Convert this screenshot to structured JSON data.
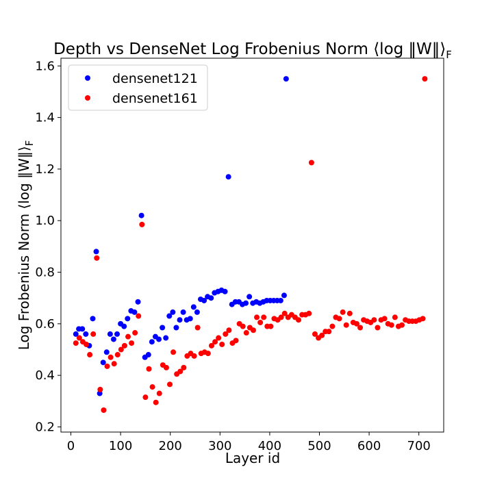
{
  "chart_data": {
    "type": "scatter",
    "title": "Depth vs DenseNet Log Frobenius Norm ⟨log ‖W‖⟩",
    "title_subscript": "F",
    "xlabel": "Layer id",
    "ylabel": "Log Frobenius Norm ⟨log ‖W‖⟩",
    "ylabel_subscript": "F",
    "xlim": [
      -20,
      750
    ],
    "ylim": [
      0.18,
      1.63
    ],
    "x_ticks": [
      0,
      100,
      200,
      300,
      400,
      500,
      600,
      700
    ],
    "y_ticks": [
      0.2,
      0.4,
      0.6,
      0.8,
      1.0,
      1.2,
      1.4,
      1.6
    ],
    "x_tick_labels": [
      "0",
      "100",
      "200",
      "300",
      "400",
      "500",
      "600",
      "700"
    ],
    "y_tick_labels": [
      "0.2",
      "0.4",
      "0.6",
      "0.8",
      "1.0",
      "1.2",
      "1.4",
      "1.6"
    ],
    "grid": false,
    "legend_position": "upper-left",
    "series": [
      {
        "name": "densenet121",
        "color": "#0000ff",
        "points": [
          [
            10,
            0.56
          ],
          [
            16,
            0.58
          ],
          [
            23,
            0.58
          ],
          [
            30,
            0.56
          ],
          [
            37,
            0.515
          ],
          [
            44,
            0.62
          ],
          [
            51,
            0.88
          ],
          [
            58,
            0.33
          ],
          [
            65,
            0.45
          ],
          [
            72,
            0.49
          ],
          [
            79,
            0.56
          ],
          [
            86,
            0.54
          ],
          [
            93,
            0.56
          ],
          [
            100,
            0.6
          ],
          [
            107,
            0.59
          ],
          [
            114,
            0.62
          ],
          [
            121,
            0.65
          ],
          [
            128,
            0.645
          ],
          [
            135,
            0.685
          ],
          [
            142,
            1.02
          ],
          [
            149,
            0.47
          ],
          [
            156,
            0.48
          ],
          [
            163,
            0.53
          ],
          [
            170,
            0.55
          ],
          [
            177,
            0.54
          ],
          [
            184,
            0.585
          ],
          [
            191,
            0.545
          ],
          [
            198,
            0.63
          ],
          [
            205,
            0.645
          ],
          [
            212,
            0.585
          ],
          [
            219,
            0.615
          ],
          [
            226,
            0.645
          ],
          [
            233,
            0.615
          ],
          [
            240,
            0.62
          ],
          [
            247,
            0.665
          ],
          [
            254,
            0.645
          ],
          [
            261,
            0.695
          ],
          [
            268,
            0.69
          ],
          [
            275,
            0.705
          ],
          [
            282,
            0.7
          ],
          [
            289,
            0.72
          ],
          [
            296,
            0.725
          ],
          [
            303,
            0.73
          ],
          [
            310,
            0.725
          ],
          [
            317,
            1.17
          ],
          [
            324,
            0.675
          ],
          [
            331,
            0.685
          ],
          [
            338,
            0.685
          ],
          [
            345,
            0.675
          ],
          [
            352,
            0.68
          ],
          [
            359,
            0.705
          ],
          [
            366,
            0.68
          ],
          [
            373,
            0.685
          ],
          [
            380,
            0.68
          ],
          [
            387,
            0.685
          ],
          [
            394,
            0.69
          ],
          [
            401,
            0.69
          ],
          [
            408,
            0.69
          ],
          [
            415,
            0.69
          ],
          [
            422,
            0.69
          ],
          [
            429,
            0.71
          ],
          [
            433,
            1.55
          ]
        ]
      },
      {
        "name": "densenet161",
        "color": "#ff0000",
        "points": [
          [
            10,
            0.525
          ],
          [
            17,
            0.545
          ],
          [
            24,
            0.53
          ],
          [
            31,
            0.52
          ],
          [
            38,
            0.48
          ],
          [
            45,
            0.56
          ],
          [
            52,
            0.855
          ],
          [
            59,
            0.345
          ],
          [
            66,
            0.265
          ],
          [
            73,
            0.435
          ],
          [
            80,
            0.47
          ],
          [
            87,
            0.445
          ],
          [
            94,
            0.48
          ],
          [
            101,
            0.5
          ],
          [
            108,
            0.515
          ],
          [
            115,
            0.55
          ],
          [
            122,
            0.525
          ],
          [
            129,
            0.565
          ],
          [
            136,
            0.63
          ],
          [
            143,
            0.985
          ],
          [
            150,
            0.315
          ],
          [
            157,
            0.425
          ],
          [
            164,
            0.355
          ],
          [
            171,
            0.295
          ],
          [
            178,
            0.33
          ],
          [
            185,
            0.44
          ],
          [
            192,
            0.43
          ],
          [
            199,
            0.365
          ],
          [
            206,
            0.49
          ],
          [
            213,
            0.405
          ],
          [
            220,
            0.415
          ],
          [
            227,
            0.43
          ],
          [
            234,
            0.475
          ],
          [
            241,
            0.485
          ],
          [
            248,
            0.475
          ],
          [
            255,
            0.585
          ],
          [
            262,
            0.485
          ],
          [
            269,
            0.49
          ],
          [
            276,
            0.485
          ],
          [
            283,
            0.515
          ],
          [
            290,
            0.53
          ],
          [
            297,
            0.545
          ],
          [
            304,
            0.52
          ],
          [
            311,
            0.56
          ],
          [
            318,
            0.575
          ],
          [
            325,
            0.525
          ],
          [
            332,
            0.535
          ],
          [
            339,
            0.6
          ],
          [
            346,
            0.59
          ],
          [
            353,
            0.565
          ],
          [
            360,
            0.585
          ],
          [
            367,
            0.575
          ],
          [
            374,
            0.625
          ],
          [
            381,
            0.605
          ],
          [
            388,
            0.625
          ],
          [
            395,
            0.59
          ],
          [
            402,
            0.59
          ],
          [
            409,
            0.62
          ],
          [
            416,
            0.615
          ],
          [
            423,
            0.625
          ],
          [
            430,
            0.64
          ],
          [
            437,
            0.625
          ],
          [
            444,
            0.635
          ],
          [
            451,
            0.625
          ],
          [
            458,
            0.615
          ],
          [
            465,
            0.635
          ],
          [
            472,
            0.635
          ],
          [
            479,
            0.64
          ],
          [
            484,
            1.225
          ],
          [
            491,
            0.56
          ],
          [
            498,
            0.545
          ],
          [
            505,
            0.555
          ],
          [
            512,
            0.57
          ],
          [
            519,
            0.57
          ],
          [
            526,
            0.59
          ],
          [
            533,
            0.625
          ],
          [
            540,
            0.62
          ],
          [
            547,
            0.645
          ],
          [
            554,
            0.595
          ],
          [
            561,
            0.64
          ],
          [
            568,
            0.605
          ],
          [
            575,
            0.6
          ],
          [
            582,
            0.585
          ],
          [
            589,
            0.615
          ],
          [
            596,
            0.61
          ],
          [
            603,
            0.605
          ],
          [
            610,
            0.615
          ],
          [
            617,
            0.585
          ],
          [
            624,
            0.615
          ],
          [
            631,
            0.62
          ],
          [
            638,
            0.6
          ],
          [
            645,
            0.595
          ],
          [
            652,
            0.625
          ],
          [
            659,
            0.59
          ],
          [
            666,
            0.595
          ],
          [
            673,
            0.615
          ],
          [
            680,
            0.61
          ],
          [
            687,
            0.61
          ],
          [
            694,
            0.61
          ],
          [
            701,
            0.615
          ],
          [
            708,
            0.62
          ],
          [
            712,
            1.55
          ]
        ]
      }
    ]
  }
}
